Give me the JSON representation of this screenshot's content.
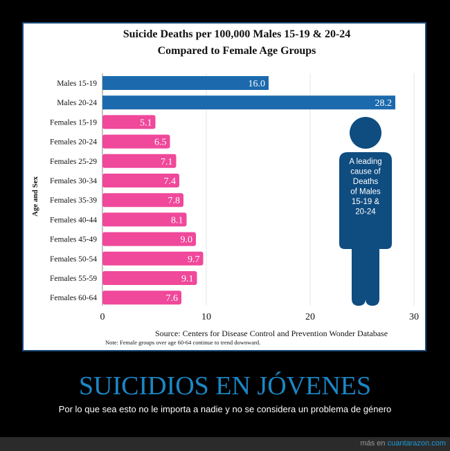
{
  "chart_data": {
    "type": "bar",
    "orientation": "horizontal",
    "title": "Suicide Deaths per 100,000 Males 15-19 & 20-24",
    "subtitle": "Compared to Female Age Groups",
    "ylabel": "Age and Sex",
    "xlabel": "",
    "xlim": [
      0,
      30
    ],
    "xticks": [
      0,
      10,
      20,
      30
    ],
    "grid": true,
    "categories": [
      "Males 15-19",
      "Males 20-24",
      "Females 15-19",
      "Females 20-24",
      "Females 25-29",
      "Females 30-34",
      "Females 35-39",
      "Females 40-44",
      "Females 45-49",
      "Females 50-54",
      "Females 55-59",
      "Females 60-64"
    ],
    "values": [
      16.0,
      28.2,
      5.1,
      6.5,
      7.1,
      7.4,
      7.8,
      8.1,
      9.0,
      9.7,
      9.1,
      7.6
    ],
    "labels": [
      "16.0",
      "28.2",
      "5.1",
      "6.5",
      "7.1",
      "7.4",
      "7.8",
      "8.1",
      "9.0",
      "9.7",
      "9.1",
      "7.6"
    ],
    "colors": {
      "male": "#1c6aad",
      "female": "#f0489a",
      "icon": "#0f4c80"
    },
    "annotation": [
      "A leading",
      "cause of",
      "Deaths",
      "of Males",
      "15-19 &",
      "20-24"
    ],
    "source": "Source: Centers for Disease Control and Prevention Wonder Database",
    "note": "Note: Female groups over age 60-64 continue to trend downward."
  },
  "caption": {
    "headline": "SUICIDIOS EN JÓVENES",
    "subline": "Por lo que sea esto no le importa a nadie y no se considera un problema de género"
  },
  "footer": {
    "prefix": "más en ",
    "link": "cuantarazon.com"
  }
}
